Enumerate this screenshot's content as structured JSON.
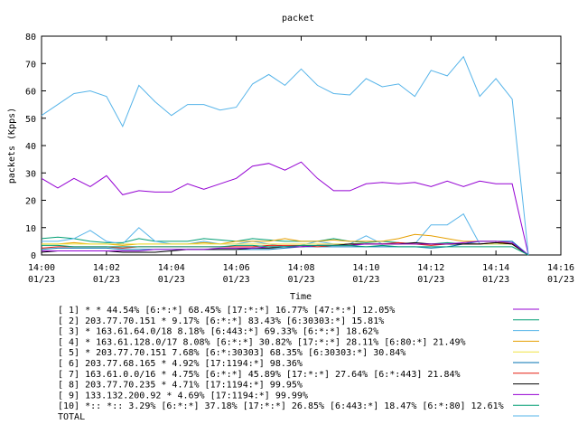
{
  "chart_data": {
    "type": "line",
    "title": "packet",
    "xlabel": "Time",
    "ylabel": "packets (Kpps)",
    "ylim": [
      0,
      80
    ],
    "yticks": [
      0,
      10,
      20,
      30,
      40,
      50,
      60,
      70,
      80
    ],
    "xlim": [
      0,
      16
    ],
    "xticks": [
      {
        "value": 0,
        "time": "14:00",
        "date": "01/23"
      },
      {
        "value": 2,
        "time": "14:02",
        "date": "01/23"
      },
      {
        "value": 4,
        "time": "14:04",
        "date": "01/23"
      },
      {
        "value": 6,
        "time": "14:06",
        "date": "01/23"
      },
      {
        "value": 8,
        "time": "14:08",
        "date": "01/23"
      },
      {
        "value": 10,
        "time": "14:10",
        "date": "01/23"
      },
      {
        "value": 12,
        "time": "14:12",
        "date": "01/23"
      },
      {
        "value": 14,
        "time": "14:14",
        "date": "01/23"
      },
      {
        "value": 16,
        "time": "14:16",
        "date": "01/23"
      }
    ],
    "grid": false,
    "legend_position": "bottom",
    "x": [
      0,
      0.5,
      1,
      1.5,
      2,
      2.5,
      3,
      3.5,
      4,
      4.5,
      5,
      5.5,
      6,
      6.5,
      7,
      7.5,
      8,
      8.5,
      9,
      9.5,
      10,
      10.5,
      11,
      11.5,
      12,
      12.5,
      13,
      13.5,
      14,
      14.5,
      15
    ],
    "series": [
      {
        "name": "[ 1] * * 44.54%  [6:*:*] 68.45% [17:*:*] 16.77% [47:*:*] 12.05%",
        "color": "#9400d3",
        "values": [
          28,
          24.5,
          28,
          25,
          29,
          22,
          23.5,
          23,
          23,
          26,
          24,
          26,
          28,
          32.5,
          33.5,
          31,
          34,
          28,
          23.5,
          23.5,
          26,
          26.5,
          26,
          26.5,
          25,
          27,
          25,
          27,
          26,
          26,
          0
        ]
      },
      {
        "name": "[ 2] 203.77.70.151 * 9.17%  [6:*:*] 83.43% [6:30303:*] 15.81%",
        "color": "#009e73",
        "values": [
          6,
          6.5,
          6,
          5,
          4.5,
          4.5,
          6,
          5,
          5,
          5,
          6,
          5.5,
          5,
          6,
          5.5,
          5,
          5,
          5,
          6,
          5,
          4.5,
          5,
          4.5,
          4,
          4,
          4.5,
          4,
          4,
          4,
          4,
          0
        ]
      },
      {
        "name": "[ 3] * 163.61.64.0/18 8.18%  [6:443:*] 69.33% [6:*:*] 18.62%",
        "color": "#56b4e9",
        "values": [
          5,
          5,
          6,
          9,
          5,
          4,
          10,
          5,
          4,
          4,
          5,
          4,
          4,
          5,
          4,
          3,
          3.5,
          5,
          4,
          4,
          7,
          4,
          4,
          4,
          11,
          11,
          15,
          4,
          4,
          4,
          0
        ]
      },
      {
        "name": "[ 4] * 163.61.128.0/17 8.08%  [6:*:*] 30.82% [17:*:*] 28.11% [6:80:*] 21.49%",
        "color": "#e69f00",
        "values": [
          4,
          4,
          4.5,
          4,
          4,
          3.5,
          4,
          4,
          4,
          4,
          4.5,
          4,
          5,
          5,
          5,
          6,
          5,
          5,
          5.5,
          5,
          5,
          5,
          6,
          7.5,
          7,
          6,
          5,
          5,
          5,
          4,
          0
        ]
      },
      {
        "name": "[ 5] * 203.77.70.151 7.68%  [6:*:30303] 68.35% [6:30303:*] 30.84%",
        "color": "#f0e442",
        "values": [
          4,
          4,
          4,
          4,
          4,
          4,
          4,
          4,
          4,
          4,
          4,
          4,
          4,
          4,
          4,
          4,
          4,
          4,
          4,
          4,
          4,
          4,
          4,
          4,
          4,
          4,
          4,
          4,
          4,
          4,
          0
        ]
      },
      {
        "name": "[ 6] 203.77.68.165 * 4.92%  [17:1194:*] 98.36%",
        "color": "#0072b2",
        "values": [
          2,
          2.5,
          2.5,
          2.5,
          2.5,
          2,
          2,
          2,
          2,
          2,
          2,
          2,
          2,
          2,
          2,
          2.5,
          3,
          3,
          3,
          3,
          3,
          3,
          3,
          3,
          2.5,
          3,
          4,
          5,
          5,
          5,
          0
        ]
      },
      {
        "name": "[ 7] 163.61.0.0/16 * 4.75%  [6:*:*] 45.89% [17:*:*] 27.64% [6:*:443] 21.84%",
        "color": "#e51e10",
        "values": [
          2.5,
          3,
          3,
          3,
          3,
          2.5,
          3,
          3,
          3,
          3,
          3,
          3,
          3,
          3,
          3.5,
          3.5,
          3.5,
          3,
          3.5,
          4,
          4,
          4,
          4.5,
          4,
          3.5,
          4,
          4,
          4,
          4.5,
          4,
          0
        ]
      },
      {
        "name": "[ 8] 203.77.70.235 * 4.71%  [17:1194:*] 99.95%",
        "color": "#000000",
        "values": [
          1,
          1.5,
          1.5,
          1.5,
          1.5,
          1,
          1,
          1,
          1.5,
          2,
          2,
          2,
          2,
          2.5,
          2.5,
          3,
          3,
          3.5,
          3.5,
          4,
          4,
          4,
          4,
          4.5,
          4,
          4,
          4,
          4,
          4.5,
          4,
          0
        ]
      },
      {
        "name": "[ 9] 133.132.200.92 * 4.69%  [17:1194:*] 99.99%",
        "color": "#9400d3",
        "values": [
          1.5,
          1.5,
          1.5,
          1.5,
          1.5,
          1.5,
          1.5,
          2,
          2,
          2,
          2,
          2.5,
          2.5,
          2.5,
          3,
          3,
          3,
          3.5,
          3.5,
          3.5,
          4,
          4,
          4,
          4,
          4,
          4,
          4.5,
          5,
          5,
          4.5,
          0
        ]
      },
      {
        "name": "[10] *:: *:: 3.29%  [6:*:*] 37.18% [17:*:*] 26.85% [6:443:*] 18.47% [6:*:80] 12.61%",
        "color": "#009e73",
        "values": [
          3.5,
          3.5,
          3,
          3,
          3,
          3,
          3,
          3,
          3,
          3,
          3,
          3,
          3.5,
          3.5,
          3,
          3,
          3.5,
          3.5,
          3.5,
          3.5,
          3,
          3.5,
          3,
          3,
          3,
          3,
          3,
          3,
          3,
          3,
          0
        ]
      },
      {
        "name": "TOTAL",
        "color": "#56b4e9",
        "values": [
          51,
          55,
          59,
          60,
          58,
          47,
          62,
          56,
          51,
          55,
          55,
          53,
          54,
          62.5,
          66,
          62,
          68,
          62,
          59,
          58.5,
          64.5,
          61.5,
          62.5,
          58,
          67.5,
          65.5,
          72.5,
          58,
          64.5,
          57,
          0
        ]
      }
    ]
  }
}
